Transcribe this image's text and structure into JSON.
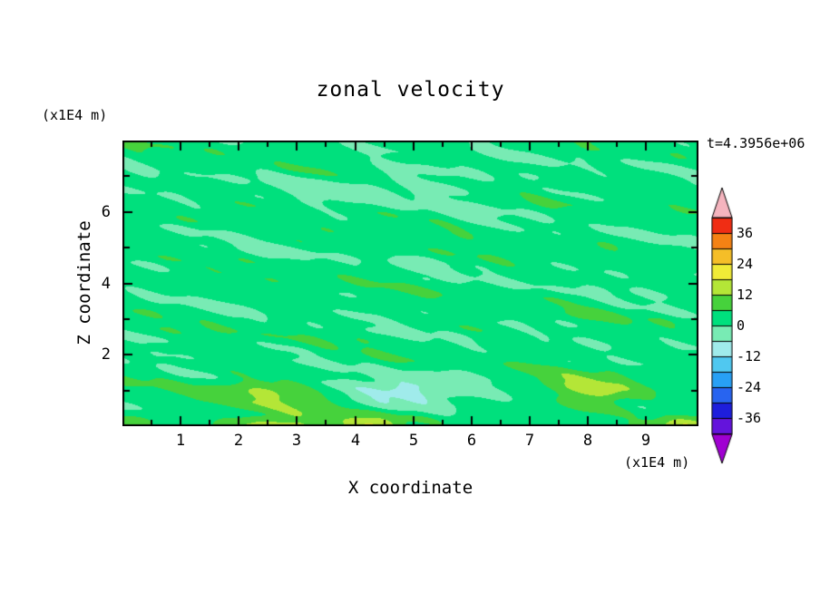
{
  "title": "zonal velocity",
  "time_label": "t=4.3956e+06",
  "axes": {
    "x": {
      "label": "X coordinate",
      "unit": "(x1E4 m)",
      "range": [
        0,
        9.9
      ],
      "major_ticks": [
        1,
        2,
        3,
        4,
        5,
        6,
        7,
        8,
        9
      ],
      "minor_ticks": [
        0.5,
        1.5,
        2.5,
        3.5,
        4.5,
        5.5,
        6.5,
        7.5,
        8.5,
        9.5
      ]
    },
    "z": {
      "label": "Z coordinate",
      "unit": "(x1E4 m)",
      "range": [
        0,
        8
      ],
      "major_ticks": [
        2,
        4,
        6
      ],
      "minor_ticks": [
        1,
        3,
        5,
        7
      ]
    }
  },
  "colorbar": {
    "ticks": [
      {
        "v": 36,
        "label": "36"
      },
      {
        "v": 24,
        "label": "24"
      },
      {
        "v": 12,
        "label": "12"
      },
      {
        "v": 0,
        "label": "0"
      },
      {
        "v": -12,
        "label": "-12"
      },
      {
        "v": -24,
        "label": "-24"
      },
      {
        "v": -36,
        "label": "-36"
      }
    ]
  },
  "chart_data": {
    "type": "filled_contour",
    "title": "zonal velocity",
    "xlabel": "X coordinate (x1E4 m)",
    "ylabel": "Z coordinate (x1E4 m)",
    "time": "t=4.3956e+06",
    "x_range": [
      0,
      9.9
    ],
    "z_range": [
      0,
      8
    ],
    "contour_levels": [
      -42,
      -36,
      -30,
      -24,
      -18,
      -12,
      -6,
      0,
      6,
      12,
      18,
      24,
      30,
      36,
      42
    ],
    "palette": [
      "#6414DC",
      "#1E1EDC",
      "#2864F0",
      "#28A0F5",
      "#50C8F0",
      "#A0EBEB",
      "#78EBB4",
      "#00E07D",
      "#46D23C",
      "#B4E637",
      "#F0EB37",
      "#F5BE28",
      "#F58214",
      "#F02D14"
    ],
    "below_color": "#A000D2",
    "above_color": "#F5B4BE",
    "description": "Horizontally streaky zonal-velocity field, mostly between -6 and +6 (spring green with pale aquamarine streaks); positive anomalies of 12-24 near the bottom boundary (yellow-green blobs near x=2.3 and x=8, yellow strips along z=0) and a negative anomaly of about -10 (pale cyan) near x=5, z=1.",
    "field_model": {
      "base": 2.4,
      "modes": [
        {
          "a": 1.7,
          "fx": 0.12,
          "fz": 0.6,
          "ph": 1.3
        },
        {
          "a": 1.45,
          "fx": 0.25,
          "fz": 1.05,
          "ph": 4.1
        },
        {
          "a": 1.3,
          "fx": 0.4,
          "fz": 0.45,
          "ph": 2.2
        },
        {
          "a": 1.1,
          "fx": 0.55,
          "fz": 1.45,
          "ph": 5.3
        },
        {
          "a": 0.95,
          "fx": 0.9,
          "fz": 0.85,
          "ph": 0.7
        },
        {
          "a": 0.75,
          "fx": 0.18,
          "fz": 1.95,
          "ph": 3.6
        },
        {
          "a": 0.7,
          "fx": 1.4,
          "fz": 1.2,
          "ph": 2.9
        },
        {
          "a": 0.6,
          "fx": 0.7,
          "fz": 2.5,
          "ph": 5.8
        }
      ],
      "blobs": [
        {
          "x": 2.35,
          "z": 0.85,
          "sx": 0.95,
          "sz": 0.5,
          "amp": 9
        },
        {
          "x": 8.05,
          "z": 0.95,
          "sx": 0.85,
          "sz": 0.55,
          "amp": 11
        },
        {
          "x": 4.95,
          "z": 0.95,
          "sx": 1.05,
          "sz": 0.5,
          "amp": -9.5
        },
        {
          "x": 2.7,
          "z": 0.0,
          "sx": 0.8,
          "sz": 0.35,
          "amp": 16
        },
        {
          "x": 4.3,
          "z": 0.0,
          "sx": 0.6,
          "sz": 0.3,
          "amp": 15
        },
        {
          "x": 9.75,
          "z": 0.0,
          "sx": 0.6,
          "sz": 0.35,
          "amp": 16
        },
        {
          "x": 0.15,
          "z": 0.05,
          "sx": 0.5,
          "sz": 0.3,
          "amp": 9
        },
        {
          "x": 5.0,
          "z": 6.8,
          "sx": 1.8,
          "sz": 0.55,
          "amp": -4.5
        }
      ]
    }
  }
}
